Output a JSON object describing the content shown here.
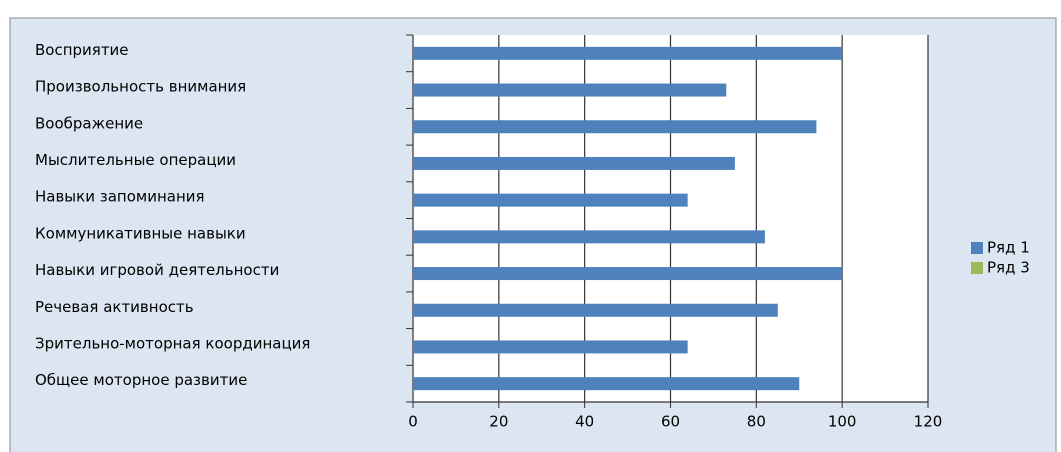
{
  "chart_data": {
    "type": "bar",
    "orientation": "horizontal",
    "categories": [
      "Восприятие",
      "Произвольность внимания",
      "Воображение",
      "Мыслительные операции",
      "Навыки запоминания",
      "Коммуникативные навыки",
      "Навыки игровой деятельности",
      "Речевая активность",
      "Зрительно-моторная координация",
      "Общее моторное развитие"
    ],
    "series": [
      {
        "name": "Ряд 1",
        "color": "#4f81bd",
        "values": [
          100,
          73,
          94,
          75,
          64,
          82,
          100,
          85,
          64,
          90
        ]
      },
      {
        "name": "Ряд 3",
        "color": "#9bbb59",
        "values": [
          null,
          null,
          null,
          null,
          null,
          null,
          null,
          null,
          null,
          null
        ]
      }
    ],
    "xlim": [
      0,
      120
    ],
    "xticks": [
      0,
      20,
      40,
      60,
      80,
      100,
      120
    ],
    "grid": true,
    "legend": "right"
  }
}
